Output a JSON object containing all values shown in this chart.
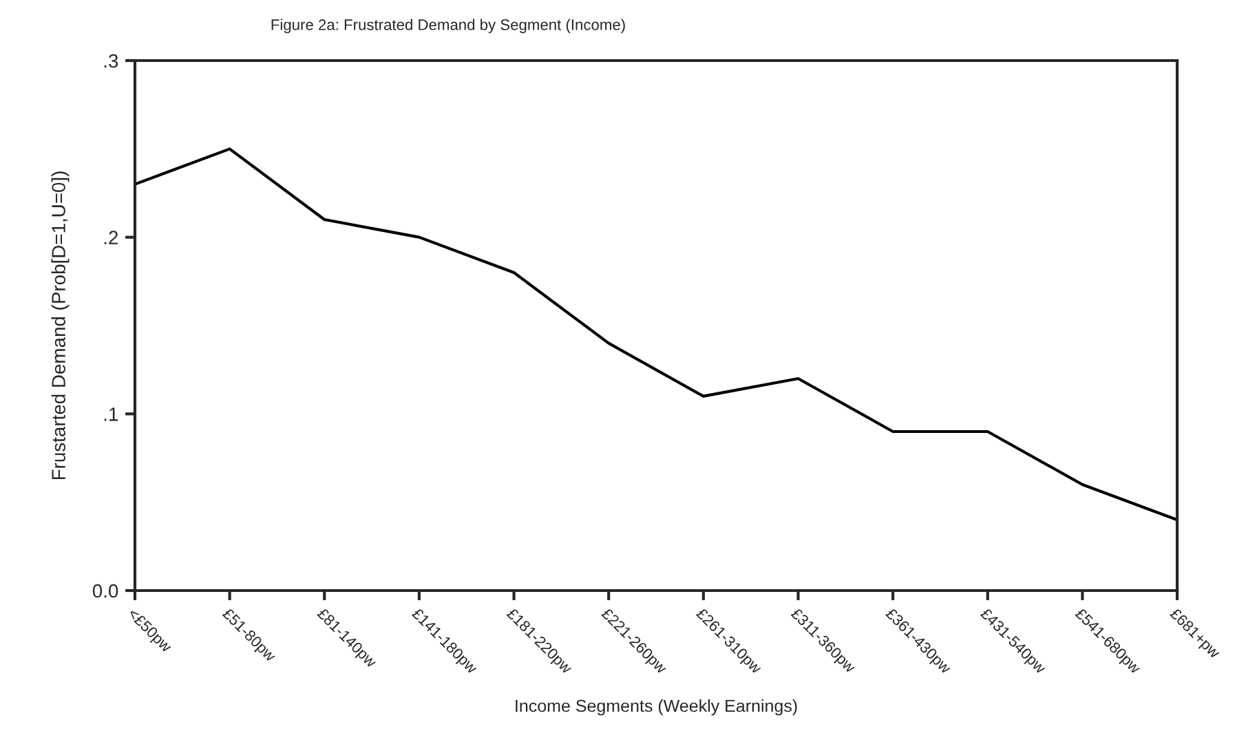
{
  "chart_data": {
    "type": "line",
    "title": "Figure 2a: Frustrated Demand by Segment (Income)",
    "xlabel": "Income Segments (Weekly Earnings)",
    "ylabel": "Frustarted Demand (Prob[D=1,U=0])",
    "categories": [
      "<£50pw",
      "£51-80pw",
      "£81-140pw",
      "£141-180pw",
      "£181-220pw",
      "£221-260pw",
      "£261-310pw",
      "£311-360pw",
      "£361-430pw",
      "£431-540pw",
      "£541-680pw",
      "£681+pw"
    ],
    "series": [
      {
        "color": "#000000",
        "values": [
          0.23,
          0.25,
          0.21,
          0.2,
          0.18,
          0.14,
          0.11,
          0.12,
          0.09,
          0.09,
          0.06,
          0.04
        ]
      }
    ],
    "ylim": [
      0,
      0.3
    ],
    "yticks": [
      {
        "value": 0,
        "label": "0.0"
      },
      {
        "value": 0.1,
        "label": ".1"
      },
      {
        "value": 0.2,
        "label": ".2"
      },
      {
        "value": 0.3,
        "label": ".3"
      }
    ],
    "grid": false,
    "legend": false,
    "marker": "none",
    "line_style": "solid"
  }
}
